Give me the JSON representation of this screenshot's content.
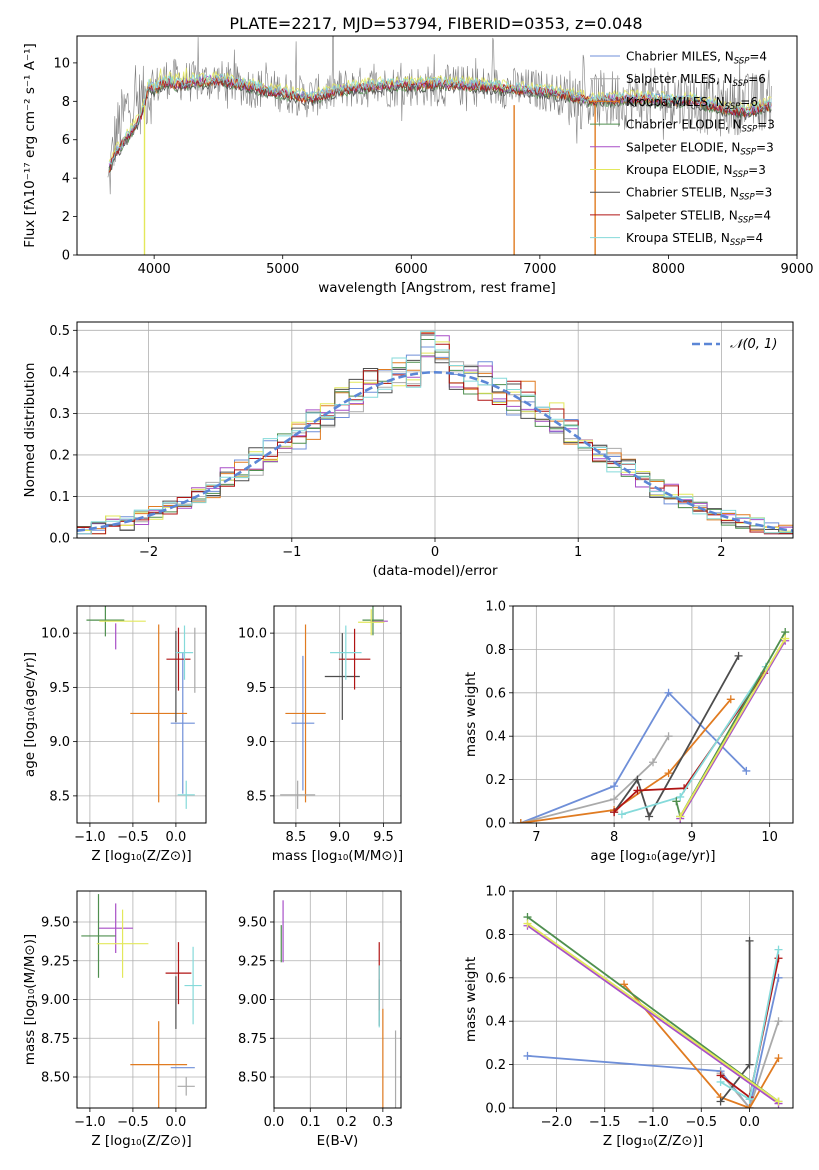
{
  "title": "PLATE=2217, MJD=53794, FIBERID=0353, z=0.048",
  "colors": [
    "#6f8fd8",
    "#aaaaaa",
    "#e07b21",
    "#4f8f4f",
    "#a84fc7",
    "#e3e85b",
    "#4d4d4d",
    "#b01414",
    "#85dada"
  ],
  "chart_data": [
    {
      "type": "line",
      "name": "spectrum",
      "xlabel": "wavelength [Angstrom, rest frame]",
      "ylabel": "Flux [fλ10⁻¹⁷ erg cm⁻² s⁻¹ A⁻¹]",
      "xlim": [
        3400,
        9000
      ],
      "ylim": [
        0,
        11.4
      ],
      "xticks": [
        4000,
        5000,
        6000,
        7000,
        8000,
        9000
      ],
      "yticks": [
        0,
        2,
        4,
        6,
        8,
        10
      ],
      "grid": false,
      "legend_placement": "top-right",
      "legend": [
        {
          "name": "Chabrier MILES",
          "nssp": "4"
        },
        {
          "name": "Salpeter MILES",
          "nssp": "6"
        },
        {
          "name": "Kroupa MILES",
          "nssp": "6"
        },
        {
          "name": "Chabrier ELODIE",
          "nssp": "3"
        },
        {
          "name": "Salpeter ELODIE",
          "nssp": "3"
        },
        {
          "name": "Kroupa ELODIE",
          "nssp": "3"
        },
        {
          "name": "Chabrier STELIB",
          "nssp": "3"
        },
        {
          "name": "Salpeter STELIB",
          "nssp": "4"
        },
        {
          "name": "Kroupa STELIB",
          "nssp": "4"
        }
      ],
      "model_continuum": [
        [
          3650,
          4.5
        ],
        [
          3700,
          5.3
        ],
        [
          3800,
          6.2
        ],
        [
          3900,
          7.2
        ],
        [
          3960,
          8.8
        ],
        [
          4000,
          8.6
        ],
        [
          4100,
          9.0
        ],
        [
          4200,
          8.8
        ],
        [
          4300,
          9.0
        ],
        [
          4400,
          9.0
        ],
        [
          4500,
          9.1
        ],
        [
          4700,
          8.8
        ],
        [
          4900,
          8.5
        ],
        [
          5100,
          8.3
        ],
        [
          5200,
          8.1
        ],
        [
          5400,
          8.5
        ],
        [
          5600,
          8.7
        ],
        [
          5800,
          8.8
        ],
        [
          6000,
          8.8
        ],
        [
          6200,
          8.9
        ],
        [
          6500,
          8.8
        ],
        [
          6800,
          8.6
        ],
        [
          7000,
          8.5
        ],
        [
          7200,
          8.3
        ],
        [
          7400,
          8.0
        ],
        [
          7600,
          8.1
        ],
        [
          7800,
          8.1
        ],
        [
          8000,
          8.0
        ],
        [
          8200,
          8.0
        ],
        [
          8400,
          7.6
        ],
        [
          8600,
          7.4
        ],
        [
          8800,
          7.8
        ]
      ],
      "data_continuum": [
        [
          3640,
          3.5
        ],
        [
          3700,
          6.2
        ],
        [
          3800,
          7.8
        ],
        [
          3900,
          8.0
        ],
        [
          4000,
          8.7
        ],
        [
          4100,
          9.2
        ],
        [
          4300,
          9.0
        ],
        [
          4500,
          9.1
        ],
        [
          4700,
          8.8
        ],
        [
          5000,
          8.5
        ],
        [
          5200,
          8.2
        ],
        [
          5500,
          8.7
        ],
        [
          6000,
          8.8
        ],
        [
          6500,
          8.8
        ],
        [
          7000,
          8.6
        ],
        [
          7200,
          8.3
        ],
        [
          7400,
          8.0
        ],
        [
          7600,
          8.1
        ],
        [
          8000,
          8.2
        ],
        [
          8400,
          7.7
        ],
        [
          8800,
          8.1
        ]
      ],
      "truncated_lines": [
        3925,
        6800,
        7430
      ]
    },
    {
      "type": "step",
      "name": "residual-histogram",
      "xlabel": "(data-model)/error",
      "ylabel": "Normed distribution",
      "xlim": [
        -2.5,
        2.5
      ],
      "ylim": [
        0,
        0.52
      ],
      "xticks": [
        -2,
        -1,
        0,
        1,
        2
      ],
      "yticks": [
        0.0,
        0.1,
        0.2,
        0.3,
        0.4,
        0.5
      ],
      "grid": true,
      "legend_placement": "top-right",
      "legend": "𝒩(0, 1)",
      "bins": 50,
      "bin_width": 0.1
    },
    {
      "type": "scatter",
      "name": "age-vs-Z",
      "xlabel": "Z [log₁₀(Z/Z⊙)]",
      "ylabel": "age  [log₁₀(age/yr)]",
      "xlim": [
        -1.15,
        0.35
      ],
      "ylim": [
        8.25,
        10.25
      ],
      "xticks": [
        -1.0,
        -0.5,
        0.0
      ],
      "yticks": [
        8.5,
        9.0,
        9.5,
        10.0
      ],
      "grid": true,
      "points": [
        {
          "c": 0,
          "x": 0.08,
          "y": 9.17,
          "xerr": 0.14,
          "yerr": 0.65
        },
        {
          "c": 2,
          "x": -0.2,
          "y": 9.26,
          "xerr": 0.33,
          "yerr": 0.82
        },
        {
          "c": 4,
          "x": -0.7,
          "y": 9.97,
          "xerr": 0.0,
          "yerr": 0.12
        },
        {
          "c": 3,
          "x": -0.82,
          "y": 10.12,
          "xerr": 0.22,
          "yerr": 0.15
        },
        {
          "c": 5,
          "x": -0.62,
          "y": 10.11,
          "xerr": 0.27,
          "yerr": 0.0
        },
        {
          "c": 6,
          "x": 0.0,
          "y": 9.6,
          "xerr": 0.0,
          "yerr": 0.42
        },
        {
          "c": 7,
          "x": 0.03,
          "y": 9.76,
          "xerr": 0.14,
          "yerr": 0.29
        },
        {
          "c": 8,
          "x": 0.1,
          "y": 9.82,
          "xerr": 0.1,
          "yerr": 0.25
        },
        {
          "c": 1,
          "x": 0.22,
          "y": 9.75,
          "xerr": 0.0,
          "yerr": 0.3
        },
        {
          "c": 8,
          "x": 0.12,
          "y": 8.51,
          "xerr": 0.1,
          "yerr": 0.13
        }
      ]
    },
    {
      "type": "scatter",
      "name": "age-vs-mass",
      "xlabel": "mass [log₁₀(M/M⊙)]",
      "ylabel": "",
      "xlim": [
        8.25,
        9.7
      ],
      "ylim": [
        8.25,
        10.25
      ],
      "xticks": [
        8.5,
        9.0,
        9.5
      ],
      "yticks": [
        8.5,
        9.0,
        9.5,
        10.0
      ],
      "grid": true,
      "points": [
        {
          "c": 0,
          "x": 8.58,
          "y": 9.17,
          "xerr": 0.13,
          "yerr": 0.62
        },
        {
          "c": 2,
          "x": 8.61,
          "y": 9.26,
          "xerr": 0.23,
          "yerr": 0.82
        },
        {
          "c": 1,
          "x": 8.52,
          "y": 8.51,
          "xerr": 0.2,
          "yerr": 0.13
        },
        {
          "c": 6,
          "x": 9.03,
          "y": 9.6,
          "xerr": 0.2,
          "yerr": 0.4
        },
        {
          "c": 7,
          "x": 9.17,
          "y": 9.76,
          "xerr": 0.18,
          "yerr": 0.28
        },
        {
          "c": 8,
          "x": 9.07,
          "y": 9.82,
          "xerr": 0.18,
          "yerr": 0.25
        },
        {
          "c": 4,
          "x": 9.45,
          "y": 10.11,
          "xerr": 0.1,
          "yerr": 0.0
        },
        {
          "c": 3,
          "x": 9.38,
          "y": 10.12,
          "xerr": 0.12,
          "yerr": 0.14
        },
        {
          "c": 5,
          "x": 9.36,
          "y": 10.1,
          "xerr": 0.15,
          "yerr": 0.12
        }
      ]
    },
    {
      "type": "line",
      "name": "mass-weight-vs-age",
      "xlabel": "age  [log₁₀(age/yr)]",
      "ylabel": "mass weight",
      "xlim": [
        6.7,
        10.3
      ],
      "ylim": [
        0,
        1.0
      ],
      "xticks": [
        7,
        8,
        9,
        10
      ],
      "yticks": [
        0.0,
        0.2,
        0.4,
        0.6,
        0.8,
        1.0
      ],
      "grid": true,
      "series": [
        {
          "c": 0,
          "x": [
            6.8,
            8.0,
            8.7,
            9.7
          ],
          "y": [
            0.0,
            0.17,
            0.6,
            0.24
          ]
        },
        {
          "c": 1,
          "x": [
            6.8,
            8.0,
            8.5,
            8.7
          ],
          "y": [
            0.0,
            0.11,
            0.28,
            0.4
          ]
        },
        {
          "c": 2,
          "x": [
            6.8,
            8.0,
            8.7,
            9.5
          ],
          "y": [
            0.0,
            0.06,
            0.23,
            0.57
          ]
        },
        {
          "c": 6,
          "x": [
            8.0,
            8.3,
            8.45,
            9.6
          ],
          "y": [
            0.05,
            0.2,
            0.03,
            0.77
          ]
        },
        {
          "c": 7,
          "x": [
            8.0,
            8.3,
            8.9,
            9.93
          ],
          "y": [
            0.05,
            0.15,
            0.16,
            0.69
          ]
        },
        {
          "c": 8,
          "x": [
            8.1,
            8.85,
            9.95
          ],
          "y": [
            0.04,
            0.12,
            0.72
          ]
        },
        {
          "c": 3,
          "x": [
            8.8,
            8.85,
            10.2
          ],
          "y": [
            0.1,
            0.03,
            0.88
          ]
        },
        {
          "c": 4,
          "x": [
            8.85,
            10.2
          ],
          "y": [
            0.02,
            0.84
          ]
        },
        {
          "c": 5,
          "x": [
            8.85,
            10.2
          ],
          "y": [
            0.03,
            0.85
          ]
        }
      ]
    },
    {
      "type": "scatter",
      "name": "mass-vs-Z",
      "xlabel": "Z [log₁₀(Z/Z⊙)]",
      "ylabel": "mass [log₁₀(M/M⊙)]",
      "xlim": [
        -1.15,
        0.35
      ],
      "ylim": [
        8.3,
        9.7
      ],
      "xticks": [
        -1.0,
        -0.5,
        0.0
      ],
      "yticks": [
        8.5,
        8.75,
        9.0,
        9.25,
        9.5
      ],
      "grid": true,
      "points": [
        {
          "c": 0,
          "x": 0.08,
          "y": 8.56,
          "xerr": 0.14,
          "yerr": 0.0
        },
        {
          "c": 2,
          "x": -0.2,
          "y": 8.58,
          "xerr": 0.33,
          "yerr": 0.28
        },
        {
          "c": 1,
          "x": 0.12,
          "y": 8.44,
          "xerr": 0.1,
          "yerr": 0.06
        },
        {
          "c": 4,
          "x": -0.7,
          "y": 9.46,
          "xerr": 0.2,
          "yerr": 0.16
        },
        {
          "c": 3,
          "x": -0.9,
          "y": 9.41,
          "xerr": 0.2,
          "yerr": 0.27
        },
        {
          "c": 5,
          "x": -0.62,
          "y": 9.36,
          "xerr": 0.3,
          "yerr": 0.22
        },
        {
          "c": 6,
          "x": 0.0,
          "y": 8.98,
          "xerr": 0.0,
          "yerr": 0.17
        },
        {
          "c": 7,
          "x": 0.03,
          "y": 9.17,
          "xerr": 0.15,
          "yerr": 0.2
        },
        {
          "c": 8,
          "x": 0.2,
          "y": 9.09,
          "xerr": 0.1,
          "yerr": 0.25
        }
      ]
    },
    {
      "type": "scatter",
      "name": "mass-vs-EBV",
      "xlabel": "E(B-V)",
      "ylabel": "",
      "xlim": [
        0.0,
        0.35
      ],
      "ylim": [
        8.3,
        9.7
      ],
      "xticks": [
        0.0,
        0.1,
        0.2,
        0.3
      ],
      "yticks": [
        8.5,
        8.75,
        9.0,
        9.25,
        9.5
      ],
      "grid": true,
      "points": [
        {
          "c": 4,
          "x": 0.025,
          "y": 9.44,
          "xerr": 0,
          "yerr": 0.2
        },
        {
          "c": 3,
          "x": 0.02,
          "y": 9.36,
          "xerr": 0,
          "yerr": 0.12
        },
        {
          "c": 6,
          "x": 0.29,
          "y": 8.98,
          "xerr": 0,
          "yerr": 0.15
        },
        {
          "c": 7,
          "x": 0.29,
          "y": 9.15,
          "xerr": 0,
          "yerr": 0.22
        },
        {
          "c": 8,
          "x": 0.29,
          "y": 9.02,
          "xerr": 0,
          "yerr": 0.2
        },
        {
          "c": 2,
          "x": 0.3,
          "y": 8.62,
          "xerr": 0,
          "yerr": 0.32
        },
        {
          "c": 1,
          "x": 0.335,
          "y": 8.5,
          "xerr": 0,
          "yerr": 0.3
        }
      ]
    },
    {
      "type": "line",
      "name": "mass-weight-vs-Z",
      "xlabel": "Z [log₁₀(Z/Z⊙)]",
      "ylabel": "mass weight",
      "xlim": [
        -2.45,
        0.45
      ],
      "ylim": [
        0,
        1.0
      ],
      "xticks": [
        -2.0,
        -1.5,
        -1.0,
        -0.5,
        0.0
      ],
      "yticks": [
        0.0,
        0.2,
        0.4,
        0.6,
        0.8,
        1.0
      ],
      "grid": true,
      "series": [
        {
          "c": 0,
          "x": [
            -2.3,
            -0.3,
            0.0,
            0.3
          ],
          "y": [
            0.24,
            0.17,
            0.0,
            0.6
          ]
        },
        {
          "c": 1,
          "x": [
            -0.3,
            0.0,
            0.3
          ],
          "y": [
            0.16,
            0.0,
            0.4
          ]
        },
        {
          "c": 2,
          "x": [
            -1.3,
            -0.3,
            0.0,
            0.3
          ],
          "y": [
            0.57,
            0.05,
            0.0,
            0.23
          ]
        },
        {
          "c": 6,
          "x": [
            -0.3,
            0.0,
            0.0
          ],
          "y": [
            0.03,
            0.2,
            0.77
          ]
        },
        {
          "c": 7,
          "x": [
            -0.3,
            0.0,
            0.3
          ],
          "y": [
            0.15,
            0.05,
            0.69
          ]
        },
        {
          "c": 8,
          "x": [
            -0.3,
            0.0,
            0.3
          ],
          "y": [
            0.12,
            0.04,
            0.73
          ]
        },
        {
          "c": 3,
          "x": [
            -2.3,
            0.3
          ],
          "y": [
            0.88,
            0.03
          ]
        },
        {
          "c": 4,
          "x": [
            -2.3,
            0.3
          ],
          "y": [
            0.84,
            0.02
          ]
        },
        {
          "c": 5,
          "x": [
            -2.3,
            0.3
          ],
          "y": [
            0.85,
            0.03
          ]
        }
      ]
    }
  ]
}
